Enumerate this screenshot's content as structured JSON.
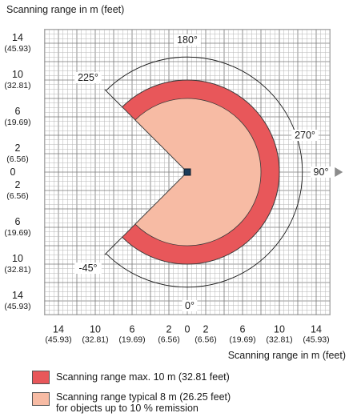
{
  "diagram": {
    "y_axis_title": "Scanning range in m (feet)",
    "x_axis_title": "Scanning range in m (feet)",
    "y_ticks": [
      {
        "m": "14",
        "ft": "(45.93)",
        "value": 14
      },
      {
        "m": "10",
        "ft": "(32.81)",
        "value": 10
      },
      {
        "m": "6",
        "ft": "(19.69)",
        "value": 6
      },
      {
        "m": "2",
        "ft": "(6.56)",
        "value": 2
      },
      {
        "m": "0",
        "ft": "",
        "value": 0
      },
      {
        "m": "2",
        "ft": "(6.56)",
        "value": -2
      },
      {
        "m": "6",
        "ft": "(19.69)",
        "value": -6
      },
      {
        "m": "10",
        "ft": "(32.81)",
        "value": -10
      },
      {
        "m": "14",
        "ft": "(45.93)",
        "value": -14
      }
    ],
    "x_ticks": [
      {
        "m": "14",
        "ft": "(45.93)",
        "value": -14
      },
      {
        "m": "10",
        "ft": "(32.81)",
        "value": -10
      },
      {
        "m": "6",
        "ft": "(19.69)",
        "value": -6
      },
      {
        "m": "2",
        "ft": "(6.56)",
        "value": -2
      },
      {
        "m": "0",
        "ft": "",
        "value": 0
      },
      {
        "m": "2",
        "ft": "(6.56)",
        "value": 2
      },
      {
        "m": "6",
        "ft": "(19.69)",
        "value": 6
      },
      {
        "m": "10",
        "ft": "(32.81)",
        "value": 10
      },
      {
        "m": "14",
        "ft": "(45.93)",
        "value": 14
      }
    ],
    "angles": [
      {
        "label": "180°",
        "deg": 180
      },
      {
        "label": "225°",
        "deg": 225
      },
      {
        "label": "270°",
        "deg": 270
      },
      {
        "label": "90°",
        "deg": 90
      },
      {
        "label": "-45°",
        "deg": -45
      },
      {
        "label": "0°",
        "deg": 0
      }
    ],
    "range_max_m": 10,
    "range_typical_m": 8,
    "field_start_deg": -45,
    "field_end_deg": 225,
    "axis_extent_m": 15.5,
    "colors": {
      "max_range": "#e8575a",
      "typical_range": "#f7bba4",
      "grid": "#9a9a9a",
      "scanner": "#1c3c5a",
      "arrow": "#8c8c8c"
    }
  },
  "legend": [
    {
      "label": "Scanning range max. 10 m (32.81 feet)",
      "color": "#e8575a"
    },
    {
      "label": "Scanning range typical 8 m (26.25 feet)",
      "label_line2": "for objects up to 10 % remission",
      "color": "#f7bba4"
    }
  ]
}
